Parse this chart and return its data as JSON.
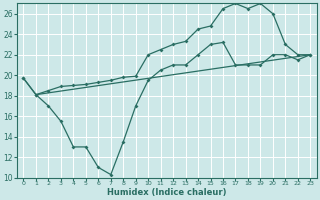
{
  "xlabel": "Humidex (Indice chaleur)",
  "xlim": [
    -0.5,
    23.5
  ],
  "ylim": [
    10,
    27
  ],
  "xticks": [
    0,
    1,
    2,
    3,
    4,
    5,
    6,
    7,
    8,
    9,
    10,
    11,
    12,
    13,
    14,
    15,
    16,
    17,
    18,
    19,
    20,
    21,
    22,
    23
  ],
  "yticks": [
    10,
    12,
    14,
    16,
    18,
    20,
    22,
    24,
    26
  ],
  "bg_color": "#cde8e8",
  "grid_color": "#ffffff",
  "line_color": "#2a6e63",
  "line1_x": [
    0,
    1,
    2,
    3,
    4,
    5,
    6,
    7,
    8,
    9,
    10,
    11,
    12,
    13,
    14,
    15,
    16,
    17,
    18,
    19,
    20,
    21,
    22,
    23
  ],
  "line1_y": [
    19.7,
    18.1,
    17.0,
    15.5,
    13.0,
    13.0,
    11.0,
    10.3,
    13.5,
    17.0,
    19.5,
    20.5,
    21.0,
    21.0,
    22.0,
    23.0,
    23.2,
    21.0,
    21.0,
    21.0,
    22.0,
    22.0,
    21.5,
    22.0
  ],
  "line2_x": [
    0,
    1,
    2,
    3,
    4,
    5,
    6,
    7,
    8,
    9,
    10,
    11,
    12,
    13,
    14,
    15,
    16,
    17,
    18,
    19,
    20,
    21,
    22,
    23
  ],
  "line2_y": [
    19.7,
    18.1,
    18.5,
    18.9,
    19.0,
    19.1,
    19.3,
    19.5,
    19.8,
    19.9,
    22.0,
    22.5,
    23.0,
    23.3,
    24.5,
    24.8,
    26.5,
    27.0,
    26.5,
    27.0,
    26.0,
    23.0,
    22.0,
    22.0
  ],
  "line3_x": [
    1,
    23
  ],
  "line3_y": [
    18.1,
    22.0
  ]
}
